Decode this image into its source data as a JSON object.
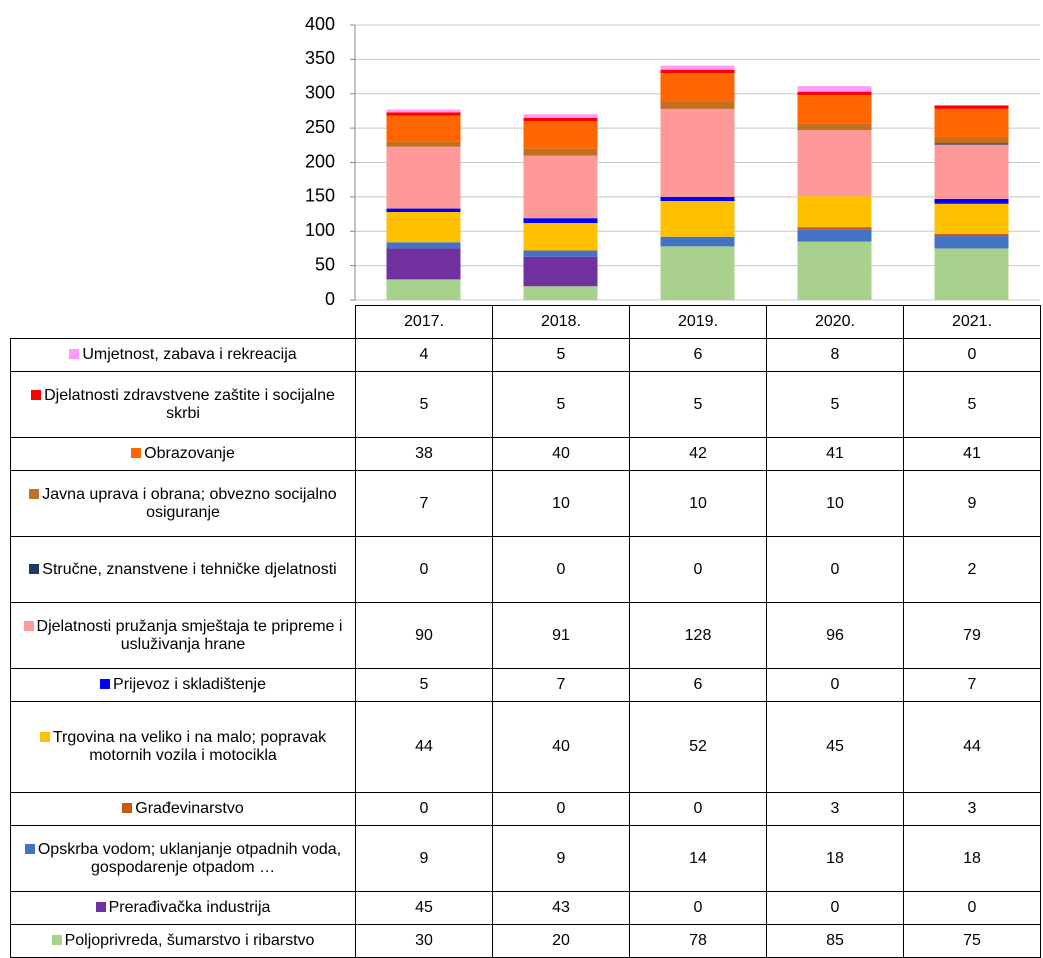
{
  "chart_data": {
    "type": "stacked_bar",
    "categories": [
      "2017.",
      "2018.",
      "2019.",
      "2020.",
      "2021."
    ],
    "ylim": [
      0,
      400
    ],
    "yticks": [
      0,
      50,
      100,
      150,
      200,
      250,
      300,
      350,
      400
    ],
    "grid": true,
    "series": [
      {
        "name": "Umjetnost, zabava i rekreacija",
        "color": "#ff99ff",
        "values": [
          4,
          5,
          6,
          8,
          0
        ]
      },
      {
        "name": "Djelatnosti zdravstvene zaštite i socijalne skrbi",
        "color": "#ff0000",
        "values": [
          5,
          5,
          5,
          5,
          5
        ]
      },
      {
        "name": "Obrazovanje",
        "color": "#ff6600",
        "values": [
          38,
          40,
          42,
          41,
          41
        ]
      },
      {
        "name": "Javna uprava i obrana; obvezno socijalno osiguranje",
        "color": "#c07020",
        "values": [
          7,
          10,
          10,
          10,
          9
        ]
      },
      {
        "name": "Stručne, znanstvene i tehničke djelatnosti",
        "color": "#1f3864",
        "values": [
          0,
          0,
          0,
          0,
          2
        ]
      },
      {
        "name": "Djelatnosti pružanja smještaja te pripreme i usluživanja hrane",
        "color": "#ff9999",
        "values": [
          90,
          91,
          128,
          96,
          79
        ]
      },
      {
        "name": "Prijevoz i skladištenje",
        "color": "#0000ff",
        "values": [
          5,
          7,
          6,
          0,
          7
        ]
      },
      {
        "name": "Trgovina na veliko i na malo; popravak motornih vozila i motocikla",
        "color": "#ffc000",
        "values": [
          44,
          40,
          52,
          45,
          44
        ]
      },
      {
        "name": "Građevinarstvo",
        "color": "#c55a11",
        "values": [
          0,
          0,
          0,
          3,
          3
        ]
      },
      {
        "name": "Opskrba vodom; uklanjanje otpadnih voda, gospodarenje otpadom …",
        "color": "#4472c4",
        "values": [
          9,
          9,
          14,
          18,
          18
        ]
      },
      {
        "name": "Prerađivačka industrija",
        "color": "#7030a0",
        "values": [
          45,
          43,
          0,
          0,
          0
        ]
      },
      {
        "name": "Poljoprivreda, šumarstvo i ribarstvo",
        "color": "#a9d18e",
        "values": [
          30,
          20,
          78,
          85,
          75
        ]
      }
    ]
  }
}
